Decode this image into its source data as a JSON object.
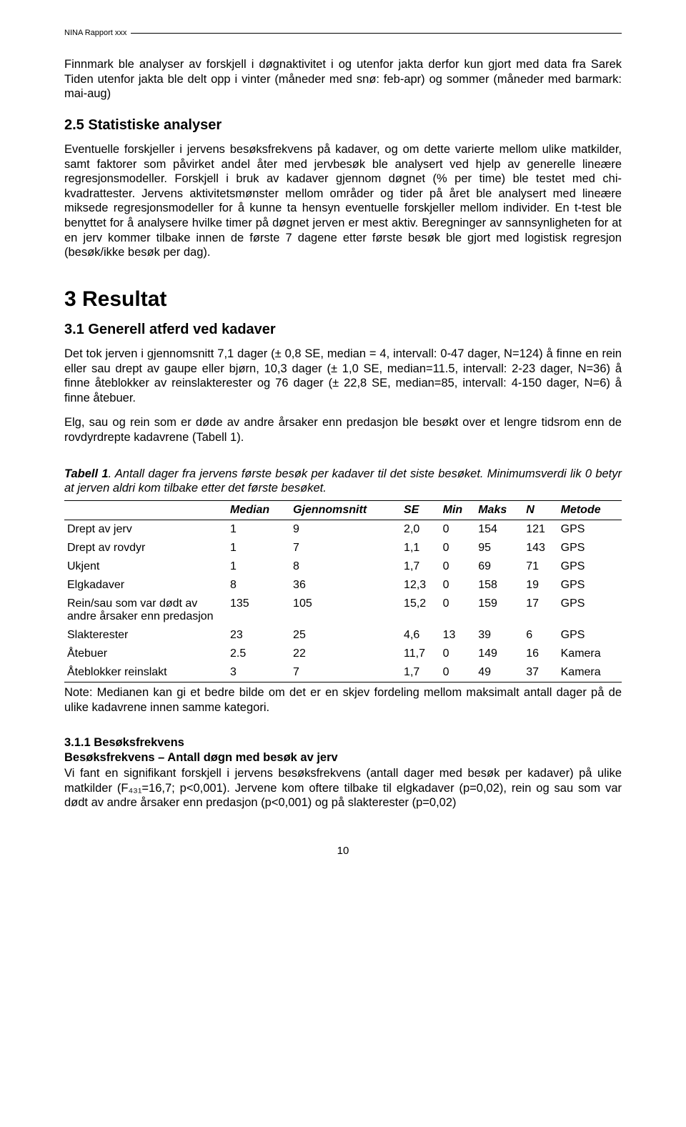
{
  "header": {
    "label": "NINA Rapport xxx"
  },
  "p_intro": "Finnmark ble analyser av forskjell i døgnaktivitet i og utenfor jakta derfor kun gjort med data fra Sarek Tiden utenfor jakta ble delt opp i vinter (måneder med snø: feb-apr) og sommer (måneder med barmark: mai-aug)",
  "h25": "2.5 Statistiske analyser",
  "p25": "Eventuelle forskjeller i jervens besøksfrekvens på kadaver, og om dette varierte mellom ulike matkilder, samt faktorer som påvirket andel åter med jervbesøk ble analysert ved hjelp av generelle lineære regresjonsmodeller. Forskjell i bruk av kadaver gjennom døgnet (% per time) ble testet med chi-kvadrattester. Jervens aktivitetsmønster mellom områder og tider på året ble analysert med lineære miksede regresjonsmodeller for å kunne ta hensyn eventuelle forskjeller mellom individer. En t-test ble benyttet for å analysere hvilke timer på døgnet jerven er mest aktiv. Beregninger av sannsynligheten for at en jerv kommer tilbake innen de første 7 dagene etter første besøk ble gjort med logistisk regresjon (besøk/ikke besøk per dag).",
  "h3": "3 Resultat",
  "h31": "3.1 Generell atferd ved kadaver",
  "p31a": "Det tok jerven i gjennomsnitt 7,1 dager (± 0,8 SE, median = 4, intervall: 0-47 dager, N=124) å finne en rein eller sau drept av gaupe eller bjørn, 10,3 dager (± 1,0 SE, median=11.5, intervall: 2-23 dager, N=36) å finne åteblokker av reinslakterester og 76 dager (± 22,8 SE, median=85, intervall: 4-150 dager, N=6) å finne åtebuer.",
  "p31b": "Elg, sau og rein som er døde av andre årsaker enn predasjon ble besøkt over et lengre tidsrom enn de rovdyrdrepte kadavrene (Tabell 1).",
  "table": {
    "caption_strong": "Tabell 1",
    "caption_rest": ". Antall dager fra jervens første besøk per kadaver til det siste besøket. Minimumsverdi lik 0 betyr at jerven aldri kom tilbake etter det første besøket.",
    "columns": [
      "",
      "Median",
      "Gjennomsnitt",
      "SE",
      "Min",
      "Maks",
      "N",
      "Metode"
    ],
    "rows": [
      [
        "Drept av jerv",
        "1",
        "9",
        "2,0",
        "0",
        "154",
        "121",
        "GPS"
      ],
      [
        "Drept av rovdyr",
        "1",
        "7",
        "1,1",
        "0",
        "95",
        "143",
        "GPS"
      ],
      [
        "Ukjent",
        "1",
        "8",
        "1,7",
        "0",
        "69",
        "71",
        "GPS"
      ],
      [
        "Elgkadaver",
        "8",
        "36",
        "12,3",
        "0",
        "158",
        "19",
        "GPS"
      ],
      [
        "Rein/sau som var dødt av andre årsaker enn predasjon",
        "135",
        "105",
        "15,2",
        "0",
        "159",
        "17",
        "GPS"
      ],
      [
        "Slakterester",
        "23",
        "25",
        "4,6",
        "13",
        "39",
        "6",
        "GPS"
      ],
      [
        "Åtebuer",
        "2.5",
        "22",
        "11,7",
        "0",
        "149",
        "16",
        "Kamera"
      ],
      [
        "Åteblokker reinslakt",
        "3",
        "7",
        "1,7",
        "0",
        "49",
        "37",
        "Kamera"
      ]
    ],
    "note": "Note: Medianen kan gi et bedre bilde om det er en skjev fordeling mellom maksimalt antall dager på de ulike kadavrene innen samme kategori."
  },
  "h311": "3.1.1 Besøksfrekvens",
  "bold311": "Besøksfrekvens – Antall døgn med besøk av jerv",
  "p311": "Vi fant en signifikant forskjell i jervens besøksfrekvens (antall dager med besøk per kadaver) på ulike matkilder (F₄₃₁=16,7; p<0,001). Jervene kom oftere tilbake til elgkadaver (p=0,02), rein og sau som var dødt av andre årsaker enn predasjon (p<0,001) og på slakterester (p=0,02)",
  "page_number": "10"
}
